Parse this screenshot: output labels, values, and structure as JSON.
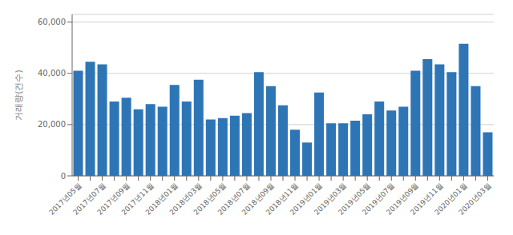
{
  "chart_data": {
    "type": "bar",
    "ylabel": "거래량(건수)",
    "categories": [
      "2017년05월",
      null,
      "2017년07월",
      null,
      "2017년09월",
      null,
      "2017년11월",
      null,
      "2018년01월",
      null,
      "2018년03월",
      null,
      "2018년05월",
      null,
      "2018년07월",
      null,
      "2018년09월",
      null,
      "2018년11월",
      null,
      "2019년01월",
      null,
      "2019년03월",
      null,
      "2019년05월",
      null,
      "2019년07월",
      null,
      "2019년09월",
      null,
      "2019년11월",
      null,
      "2020년01월",
      null,
      "2020년03월"
    ],
    "values": [
      41000,
      44500,
      43500,
      29000,
      30500,
      26000,
      28000,
      27000,
      35500,
      29000,
      37500,
      22000,
      22500,
      23500,
      24500,
      40500,
      35000,
      27500,
      18000,
      13000,
      32500,
      20500,
      20500,
      21500,
      24000,
      29000,
      25500,
      27000,
      41000,
      45500,
      43500,
      40500,
      51500,
      35000,
      17000
    ],
    "color": "#2e75b6",
    "ylim": [
      0,
      63000
    ],
    "yticks": [
      0,
      {
        "value": 20000,
        "label": "20,000"
      },
      {
        "value": 40000,
        "label": "40,000"
      },
      {
        "value": 60000,
        "label": "60,000"
      }
    ],
    "grid": true
  }
}
